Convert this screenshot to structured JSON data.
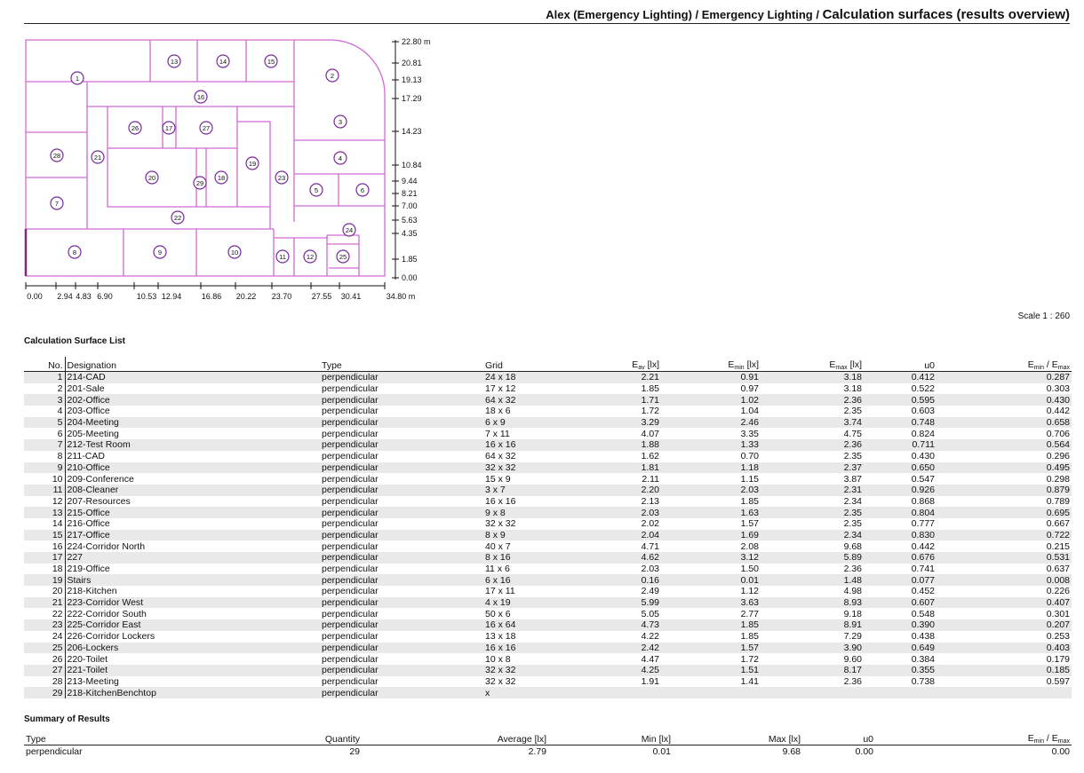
{
  "header": {
    "prefix": "Alex (Emergency Lighting) / Emergency Lighting /",
    "title": "Calculation surfaces (results overview)"
  },
  "plan": {
    "y_labels": [
      "22.80 m",
      "20.81",
      "19.13",
      "17.29",
      "14.23",
      "10.84",
      "9.44",
      "8.21",
      "7.00",
      "5.63",
      "4.35",
      "1.85",
      "0.00"
    ],
    "x_labels": [
      "0.00",
      "2.94",
      "4.83",
      "6.90",
      "10.53",
      "12.94",
      "16.86",
      "20.22",
      "23.70",
      "27.55",
      "30.41",
      "34.80 m"
    ],
    "room_numbers": [
      "1",
      "2",
      "3",
      "4",
      "5",
      "6",
      "7",
      "8",
      "9",
      "10",
      "11",
      "12",
      "13",
      "14",
      "15",
      "16",
      "17",
      "18",
      "19",
      "20",
      "21",
      "22",
      "23",
      "24",
      "25",
      "26",
      "27",
      "28",
      "29"
    ]
  },
  "scale": "Scale 1 : 260",
  "list": {
    "title": "Calculation Surface List",
    "columns": {
      "no": "No.",
      "designation": "Designation",
      "type": "Type",
      "grid": "Grid",
      "eav": "E",
      "eav_sub": "av",
      "eav_unit": " [lx]",
      "emin": "E",
      "emin_sub": "min",
      "emin_unit": " [lx]",
      "emax": "E",
      "emax_sub": "max",
      "emax_unit": " [lx]",
      "u0": "u0",
      "ratio_a": "E",
      "ratio_a_sub": "min",
      "ratio_sep": " / E",
      "ratio_b_sub": "max"
    },
    "rows": [
      [
        "1",
        "214-CAD",
        "perpendicular",
        "24 x 18",
        "2.21",
        "0.91",
        "3.18",
        "0.412",
        "0.287"
      ],
      [
        "2",
        "201-Sale",
        "perpendicular",
        "17 x 12",
        "1.85",
        "0.97",
        "3.18",
        "0.522",
        "0.303"
      ],
      [
        "3",
        "202-Office",
        "perpendicular",
        "64 x 32",
        "1.71",
        "1.02",
        "2.36",
        "0.595",
        "0.430"
      ],
      [
        "4",
        "203-Office",
        "perpendicular",
        "18 x 6",
        "1.72",
        "1.04",
        "2.35",
        "0.603",
        "0.442"
      ],
      [
        "5",
        "204-Meeting",
        "perpendicular",
        "6 x 9",
        "3.29",
        "2.46",
        "3.74",
        "0.748",
        "0.658"
      ],
      [
        "6",
        "205-Meeting",
        "perpendicular",
        "7 x 11",
        "4.07",
        "3.35",
        "4.75",
        "0.824",
        "0.706"
      ],
      [
        "7",
        "212-Test Room",
        "perpendicular",
        "16 x 16",
        "1.88",
        "1.33",
        "2.36",
        "0.711",
        "0.564"
      ],
      [
        "8",
        "211-CAD",
        "perpendicular",
        "64 x 32",
        "1.62",
        "0.70",
        "2.35",
        "0.430",
        "0.296"
      ],
      [
        "9",
        "210-Office",
        "perpendicular",
        "32 x 32",
        "1.81",
        "1.18",
        "2.37",
        "0.650",
        "0.495"
      ],
      [
        "10",
        "209-Conference",
        "perpendicular",
        "15 x 9",
        "2.11",
        "1.15",
        "3.87",
        "0.547",
        "0.298"
      ],
      [
        "11",
        "208-Cleaner",
        "perpendicular",
        "3 x 7",
        "2.20",
        "2.03",
        "2.31",
        "0.926",
        "0.879"
      ],
      [
        "12",
        "207-Resources",
        "perpendicular",
        "16 x 16",
        "2.13",
        "1.85",
        "2.34",
        "0.868",
        "0.789"
      ],
      [
        "13",
        "215-Office",
        "perpendicular",
        "9 x 8",
        "2.03",
        "1.63",
        "2.35",
        "0.804",
        "0.695"
      ],
      [
        "14",
        "216-Office",
        "perpendicular",
        "32 x 32",
        "2.02",
        "1.57",
        "2.35",
        "0.777",
        "0.667"
      ],
      [
        "15",
        "217-Office",
        "perpendicular",
        "8 x 9",
        "2.04",
        "1.69",
        "2.34",
        "0.830",
        "0.722"
      ],
      [
        "16",
        "224-Corridor North",
        "perpendicular",
        "40 x 7",
        "4.71",
        "2.08",
        "9.68",
        "0.442",
        "0.215"
      ],
      [
        "17",
        "227",
        "perpendicular",
        "8 x 16",
        "4.62",
        "3.12",
        "5.89",
        "0.676",
        "0.531"
      ],
      [
        "18",
        "219-Office",
        "perpendicular",
        "11 x 6",
        "2.03",
        "1.50",
        "2.36",
        "0.741",
        "0.637"
      ],
      [
        "19",
        "Stairs",
        "perpendicular",
        "6 x 16",
        "0.16",
        "0.01",
        "1.48",
        "0.077",
        "0.008"
      ],
      [
        "20",
        "218-Kitchen",
        "perpendicular",
        "17 x 11",
        "2.49",
        "1.12",
        "4.98",
        "0.452",
        "0.226"
      ],
      [
        "21",
        "223-Corridor West",
        "perpendicular",
        "4 x 19",
        "5.99",
        "3.63",
        "8.93",
        "0.607",
        "0.407"
      ],
      [
        "22",
        "222-Corridor South",
        "perpendicular",
        "50 x 6",
        "5.05",
        "2.77",
        "9.18",
        "0.548",
        "0.301"
      ],
      [
        "23",
        "225-Corridor East",
        "perpendicular",
        "16 x 64",
        "4.73",
        "1.85",
        "8.91",
        "0.390",
        "0.207"
      ],
      [
        "24",
        "226-Corridor Lockers",
        "perpendicular",
        "13 x 18",
        "4.22",
        "1.85",
        "7.29",
        "0.438",
        "0.253"
      ],
      [
        "25",
        "206-Lockers",
        "perpendicular",
        "16 x 16",
        "2.42",
        "1.57",
        "3.90",
        "0.649",
        "0.403"
      ],
      [
        "26",
        "220-Toilet",
        "perpendicular",
        "10 x 8",
        "4.47",
        "1.72",
        "9.60",
        "0.384",
        "0.179"
      ],
      [
        "27",
        "221-Toilet",
        "perpendicular",
        "32 x 32",
        "4.25",
        "1.51",
        "8.17",
        "0.355",
        "0.185"
      ],
      [
        "28",
        "213-Meeting",
        "perpendicular",
        "32 x 32",
        "1.91",
        "1.41",
        "2.36",
        "0.738",
        "0.597"
      ],
      [
        "29",
        "218-KitchenBenchtop",
        "perpendicular",
        "x",
        "",
        "",
        "",
        "",
        ""
      ]
    ]
  },
  "summary": {
    "title": "Summary of Results",
    "headers": {
      "type": "Type",
      "quantity": "Quantity",
      "average": "Average [lx]",
      "min": "Min [lx]",
      "max": "Max [lx]",
      "u0": "u0",
      "ratio_a": "E",
      "ratio_a_sub": "min",
      "ratio_sep": " / E",
      "ratio_b_sub": "max"
    },
    "row": {
      "type": "perpendicular",
      "quantity": "29",
      "average": "2.79",
      "min": "0.01",
      "max": "9.68",
      "u0": "0.00",
      "ratio": "0.00"
    }
  }
}
